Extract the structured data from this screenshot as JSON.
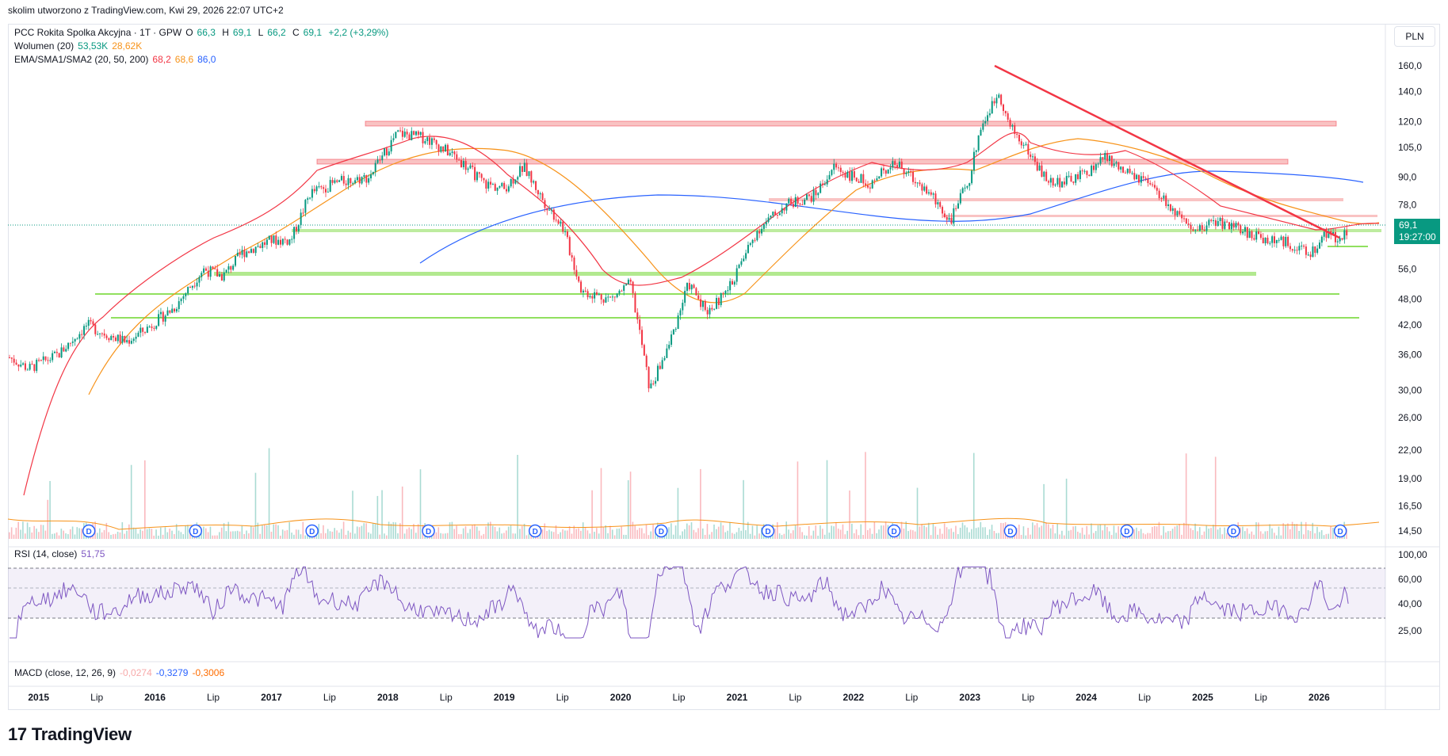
{
  "header": {
    "caption": "skolim utworzono z TradingView.com, Kwi 29, 2026 22:07 UTC+2"
  },
  "legend": {
    "symbol": "PCC Rokita Spolka Akcyjna · 1T · GPW",
    "o_label": "O",
    "o_value": "66,3",
    "h_label": "H",
    "h_value": "69,1",
    "l_label": "L",
    "l_value": "66,2",
    "c_label": "C",
    "c_value": "69,1",
    "change": "+2,2 (+3,29%)",
    "volume_label": "Wolumen (20)",
    "volume_value": "53,53K",
    "volume_ma": "28,62K",
    "ma_label": "EMA/SMA1/SMA2 (20, 50, 200)",
    "ma_values": [
      "68,2",
      "68,6",
      "86,0"
    ],
    "rsi_label": "RSI (14, close)",
    "rsi_value": "51,75",
    "macd_label": "MACD (close, 12, 26, 9)",
    "macd_values": [
      "-0,0274",
      "-0,3279",
      "-0,3006"
    ]
  },
  "currency_button": "PLN",
  "last_price": {
    "value": "69,1",
    "countdown": "19:27:00"
  },
  "logo": {
    "text": "TradingView",
    "mark": "17"
  },
  "colors": {
    "up": "#089981",
    "down": "#f23645",
    "ema": "#f23645",
    "sma50": "#f7931a",
    "sma200": "#2962ff",
    "rsi": "#7e57c2",
    "support": "#91e05f",
    "resistance": "#f7a9a9"
  },
  "chart_data": {
    "type": "candlestick",
    "scale": "log",
    "currency": "PLN",
    "y_ticks": [
      "160,0",
      "140,0",
      "120,0",
      "105,0",
      "90,0",
      "78,0",
      "69,1",
      "56,0",
      "48,00",
      "42,00",
      "36,00",
      "30,00",
      "26,00",
      "22,00",
      "19,00",
      "16,50",
      "14,50"
    ],
    "rsi_ticks": [
      "100,00",
      "60,00",
      "40,00",
      "25,00"
    ],
    "x_ticks": [
      "2015",
      "Lip",
      "2016",
      "Lip",
      "2017",
      "Lip",
      "2018",
      "Lip",
      "2019",
      "Lip",
      "2020",
      "Lip",
      "2021",
      "Lip",
      "2022",
      "Lip",
      "2023",
      "Lip",
      "2024",
      "Lip",
      "2025",
      "Lip",
      "2026"
    ],
    "price_path": [
      [
        "2014-10",
        35.5
      ],
      [
        "2014-12",
        33.5
      ],
      [
        "2015-03",
        36
      ],
      [
        "2015-06",
        42
      ],
      [
        "2015-08",
        40
      ],
      [
        "2015-10",
        38.5
      ],
      [
        "2015-12",
        41
      ],
      [
        "2016-03",
        46
      ],
      [
        "2016-06",
        56
      ],
      [
        "2016-08",
        54
      ],
      [
        "2016-10",
        61
      ],
      [
        "2017-01",
        65
      ],
      [
        "2017-03",
        65
      ],
      [
        "2017-05",
        83
      ],
      [
        "2017-08",
        88
      ],
      [
        "2017-11",
        90
      ],
      [
        "2018-02",
        113
      ],
      [
        "2018-05",
        110
      ],
      [
        "2018-08",
        100
      ],
      [
        "2018-11",
        87
      ],
      [
        "2019-01",
        85
      ],
      [
        "2019-03",
        95
      ],
      [
        "2019-05",
        80
      ],
      [
        "2019-07",
        70
      ],
      [
        "2019-09",
        50
      ],
      [
        "2019-12",
        48
      ],
      [
        "2020-02",
        52
      ],
      [
        "2020-03",
        40
      ],
      [
        "2020-04",
        30
      ],
      [
        "2020-06",
        38
      ],
      [
        "2020-08",
        52
      ],
      [
        "2020-10",
        45
      ],
      [
        "2020-12",
        50
      ],
      [
        "2021-03",
        68
      ],
      [
        "2021-06",
        78
      ],
      [
        "2021-09",
        82
      ],
      [
        "2021-11",
        95
      ],
      [
        "2022-01",
        90
      ],
      [
        "2022-03",
        87
      ],
      [
        "2022-05",
        98
      ],
      [
        "2022-07",
        90
      ],
      [
        "2022-09",
        82
      ],
      [
        "2022-11",
        72
      ],
      [
        "2023-01",
        90
      ],
      [
        "2023-02",
        115
      ],
      [
        "2023-04",
        140
      ],
      [
        "2023-05",
        118
      ],
      [
        "2023-07",
        103
      ],
      [
        "2023-09",
        88
      ],
      [
        "2023-11",
        88
      ],
      [
        "2024-01",
        92
      ],
      [
        "2024-03",
        100
      ],
      [
        "2024-05",
        92
      ],
      [
        "2024-07",
        88
      ],
      [
        "2024-09",
        80
      ],
      [
        "2024-12",
        67
      ],
      [
        "2025-02",
        72
      ],
      [
        "2025-04",
        70
      ],
      [
        "2025-06",
        67
      ],
      [
        "2025-08",
        65
      ],
      [
        "2025-10",
        64
      ],
      [
        "2025-12",
        60
      ],
      [
        "2026-02",
        69
      ],
      [
        "2026-03",
        64
      ],
      [
        "2026-04",
        69.1
      ]
    ],
    "support_levels": [
      66,
      54,
      48,
      42.5
    ],
    "resistance_levels": [
      118,
      93,
      76,
      70
    ],
    "trendline": [
      [
        "2023-03",
        155
      ],
      [
        "2026-01",
        64
      ]
    ],
    "last_value": 69.1,
    "rsi_last": 51.75,
    "rsi_bands": [
      70,
      50,
      30
    ]
  }
}
